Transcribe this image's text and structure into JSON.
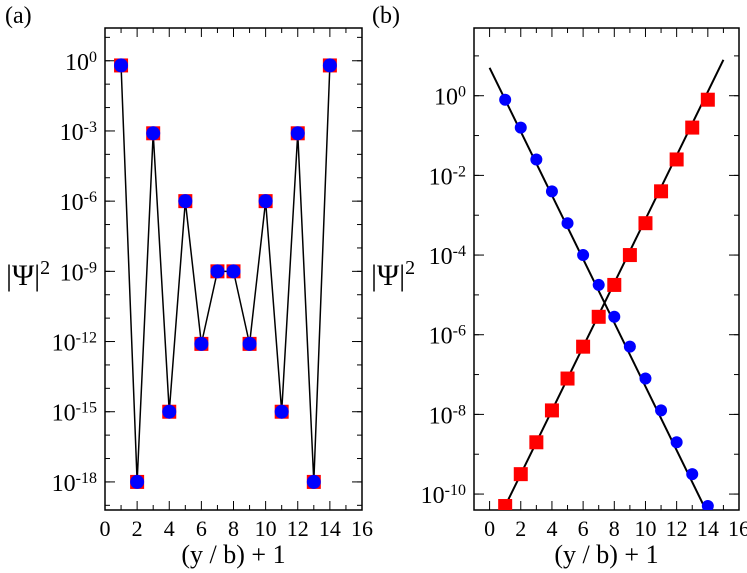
{
  "chart_data": [
    {
      "panel_label": "(a)",
      "type": "line",
      "xlabel": "(y / b) + 1",
      "ylabel_base": "|Ψ|",
      "ylabel_exp": "2",
      "xscale": "linear",
      "yscale": "log",
      "xlim": [
        0,
        16
      ],
      "ylim_exp": [
        -19.2,
        1.4
      ],
      "xticks": [
        0,
        2,
        4,
        6,
        8,
        10,
        12,
        14,
        16
      ],
      "xtick_labels": [
        "0",
        "2",
        "4",
        "6",
        "8",
        "10",
        "12",
        "14",
        "16"
      ],
      "yticks_exp": [
        0,
        -3,
        -6,
        -9,
        -12,
        -15,
        -18
      ],
      "ytick_base": "10",
      "ytick_exp_labels": [
        "0",
        "-3",
        "-6",
        "-9",
        "-12",
        "-15",
        "-18"
      ],
      "grid": false,
      "series": [
        {
          "name": "red squares",
          "marker": "square",
          "color": "#ff0000",
          "x": [
            1,
            2,
            3,
            4,
            5,
            6,
            7,
            8,
            9,
            10,
            11,
            12,
            13,
            14
          ],
          "log10_y": [
            -0.2,
            -18.0,
            -3.1,
            -15.0,
            -6.0,
            -12.1,
            -9.0,
            -9.0,
            -12.1,
            -6.0,
            -15.0,
            -3.1,
            -18.0,
            -0.2
          ]
        },
        {
          "name": "blue circles",
          "marker": "circle",
          "color": "#0000ff",
          "x": [
            1,
            2,
            3,
            4,
            5,
            6,
            7,
            8,
            9,
            10,
            11,
            12,
            13,
            14
          ],
          "log10_y": [
            -0.2,
            -18.0,
            -3.1,
            -15.0,
            -6.0,
            -12.1,
            -9.0,
            -9.0,
            -12.1,
            -6.0,
            -15.0,
            -3.1,
            -18.0,
            -0.2
          ]
        }
      ],
      "connecting_line_color": "#000000"
    },
    {
      "panel_label": "(b)",
      "type": "scatter",
      "xlabel": "(y / b) + 1",
      "ylabel_base": "|Ψ|",
      "ylabel_exp": "2",
      "xscale": "linear",
      "yscale": "log",
      "xlim": [
        -1,
        16
      ],
      "ylim_exp": [
        -10.4,
        1.7
      ],
      "xticks": [
        0,
        2,
        4,
        6,
        8,
        10,
        12,
        14,
        16
      ],
      "xtick_labels": [
        "0",
        "2",
        "4",
        "6",
        "8",
        "10",
        "12",
        "14",
        "16"
      ],
      "yticks_exp": [
        0,
        -2,
        -4,
        -6,
        -8,
        -10
      ],
      "ytick_base": "10",
      "ytick_exp_labels": [
        "0",
        "-2",
        "-4",
        "-6",
        "-8",
        "-10"
      ],
      "grid": false,
      "series": [
        {
          "name": "blue circles",
          "marker": "circle",
          "color": "#0000ff",
          "x": [
            1,
            2,
            3,
            4,
            5,
            6,
            7,
            8,
            9,
            10,
            11,
            12,
            13,
            14
          ],
          "log10_y": [
            -0.1,
            -0.8,
            -1.6,
            -2.4,
            -3.2,
            -4.0,
            -4.75,
            -5.55,
            -6.3,
            -7.1,
            -7.9,
            -8.7,
            -9.5,
            -10.3
          ]
        },
        {
          "name": "red squares",
          "marker": "square",
          "color": "#ff0000",
          "x": [
            1,
            2,
            3,
            4,
            5,
            6,
            7,
            8,
            9,
            10,
            11,
            12,
            13,
            14
          ],
          "log10_y": [
            -10.3,
            -9.5,
            -8.7,
            -7.9,
            -7.1,
            -6.3,
            -5.55,
            -4.75,
            -4.0,
            -3.2,
            -2.4,
            -1.6,
            -0.8,
            -0.1
          ]
        }
      ],
      "fit_lines": [
        {
          "name": "decaying fit",
          "color": "#000000",
          "x": [
            0,
            15
          ],
          "log10_y": [
            0.7,
            -11.3
          ]
        },
        {
          "name": "growing fit",
          "color": "#000000",
          "x": [
            0,
            15
          ],
          "log10_y": [
            -11.1,
            0.9
          ]
        }
      ]
    }
  ]
}
